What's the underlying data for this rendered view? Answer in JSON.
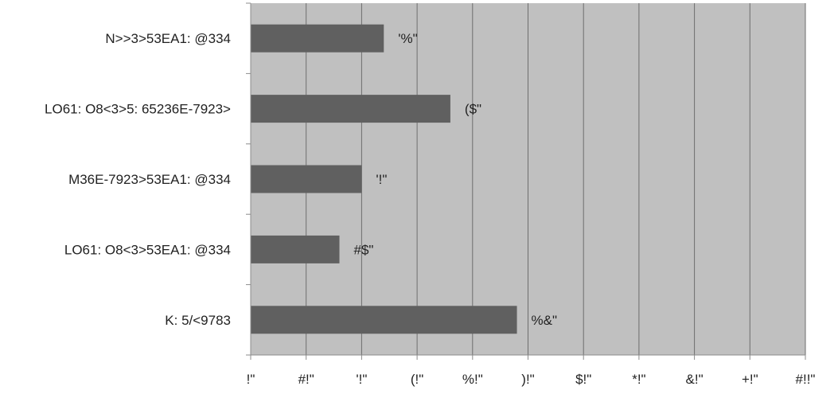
{
  "chart_data": {
    "type": "bar",
    "orientation": "horizontal",
    "categories": [
      "N>>3>53EA1: @334",
      "LO61: O8<3>5: 65236E-7923>",
      "M36E-7923>53EA1: @334",
      "LO61: O8<3>53EA1: @334",
      "K: 5/<9783"
    ],
    "values": [
      12,
      18,
      10,
      8,
      24
    ],
    "data_labels": [
      "'%\"",
      "($\"",
      "'!\"",
      "#$\"",
      "%&\""
    ],
    "xlim": [
      0,
      50
    ],
    "x_ticks": [
      0,
      5,
      10,
      15,
      20,
      25,
      30,
      35,
      40,
      45,
      50
    ],
    "x_tick_labels": [
      "!\"",
      "#!\"",
      "'!\"",
      "(!\"",
      "%!\"",
      ")!\"",
      "$!\"",
      "*!\"",
      "&!\"",
      "+!\"",
      "#!!\""
    ],
    "grid": "vertical",
    "legend": "none",
    "title": "",
    "xlabel": "",
    "ylabel": "",
    "colors": {
      "bar": "#606060",
      "plot_background": "#c0c0c0",
      "gridline": "#6e6e6e",
      "axis": "#8c8c8c"
    }
  }
}
